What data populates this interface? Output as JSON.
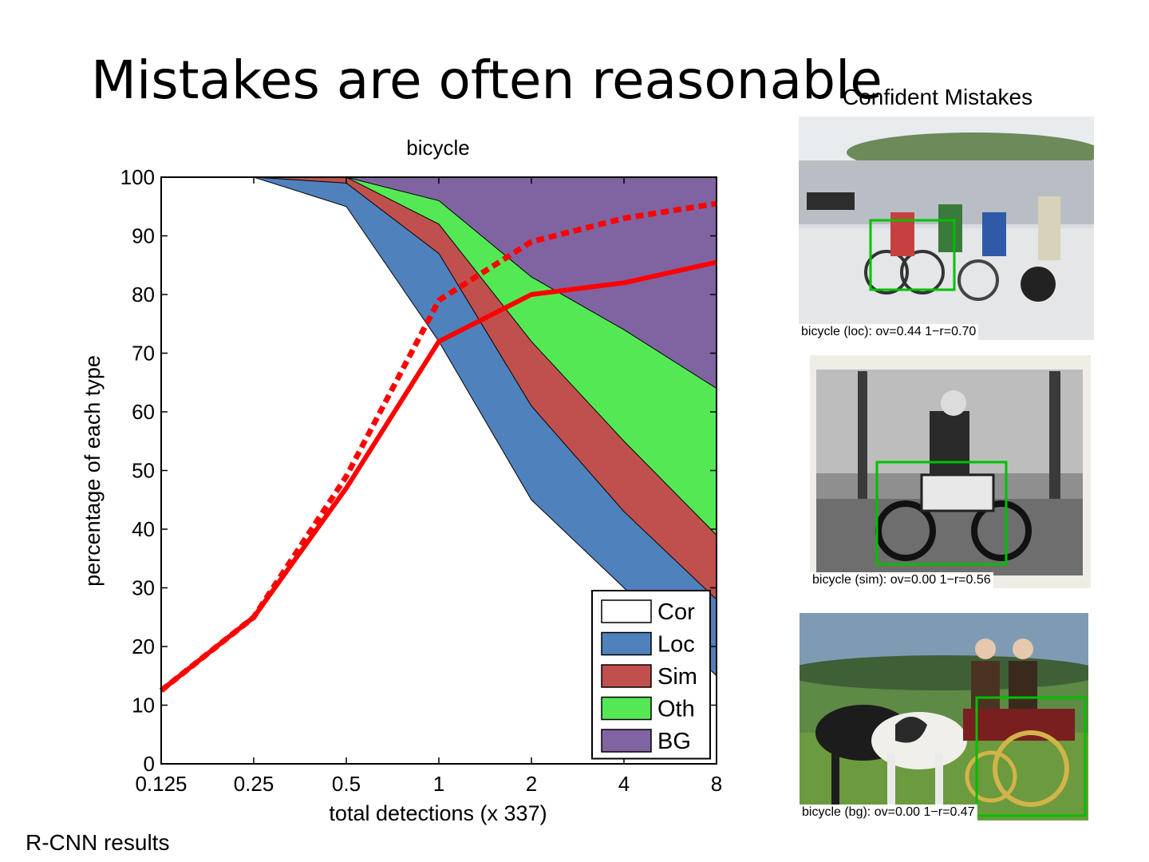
{
  "slide": {
    "title": "Mistakes are often reasonable",
    "mistakes_heading": "Confident Mistakes",
    "caption": "R-CNN results"
  },
  "chart_data": {
    "type": "area",
    "title": "bicycle",
    "xlabel": "total detections (x 337)",
    "ylabel": "percentage of each type",
    "x": [
      0.125,
      0.25,
      0.5,
      1,
      2,
      4,
      8
    ],
    "x_tick_labels": [
      "0.125",
      "0.25",
      "0.5",
      "1",
      "2",
      "4",
      "8"
    ],
    "x_scale": "log",
    "ylim": [
      0,
      100
    ],
    "y_ticks": [
      0,
      10,
      20,
      30,
      40,
      50,
      60,
      70,
      80,
      90,
      100
    ],
    "grid": false,
    "legend": {
      "placement": "bottom-right"
    },
    "series": [
      {
        "name": "Cor",
        "color": "#ffffff",
        "cumulative_upper": [
          100,
          100,
          95,
          72,
          45,
          30,
          15
        ]
      },
      {
        "name": "Loc",
        "color": "#4f81bd",
        "cumulative_upper": [
          100,
          100,
          99,
          87,
          61,
          43,
          28
        ]
      },
      {
        "name": "Sim",
        "color": "#c0504d",
        "cumulative_upper": [
          100,
          100,
          100,
          92,
          72,
          55,
          39
        ]
      },
      {
        "name": "Oth",
        "color": "#55e855",
        "cumulative_upper": [
          100,
          100,
          100,
          96,
          83,
          74,
          64
        ]
      },
      {
        "name": "BG",
        "color": "#8064a2",
        "cumulative_upper": [
          100,
          100,
          100,
          100,
          100,
          100,
          100
        ]
      }
    ],
    "lines": [
      {
        "style": "solid",
        "color": "#ff0000",
        "x": [
          0.125,
          0.25,
          0.5,
          1,
          2,
          4,
          8
        ],
        "y": [
          12.5,
          25,
          47,
          72,
          80,
          82,
          85.5
        ]
      },
      {
        "style": "dashed",
        "color": "#ff0000",
        "x": [
          0.125,
          0.25,
          0.5,
          1,
          2,
          4,
          8
        ],
        "y": [
          12.5,
          25,
          49,
          79,
          89,
          93,
          95.5
        ]
      }
    ]
  },
  "mistakes": [
    {
      "label": "bicycle (loc): ov=0.44  1−r=0.70"
    },
    {
      "label": "bicycle (sim): ov=0.00  1−r=0.56"
    },
    {
      "label": "bicycle (bg): ov=0.00  1−r=0.47"
    }
  ]
}
